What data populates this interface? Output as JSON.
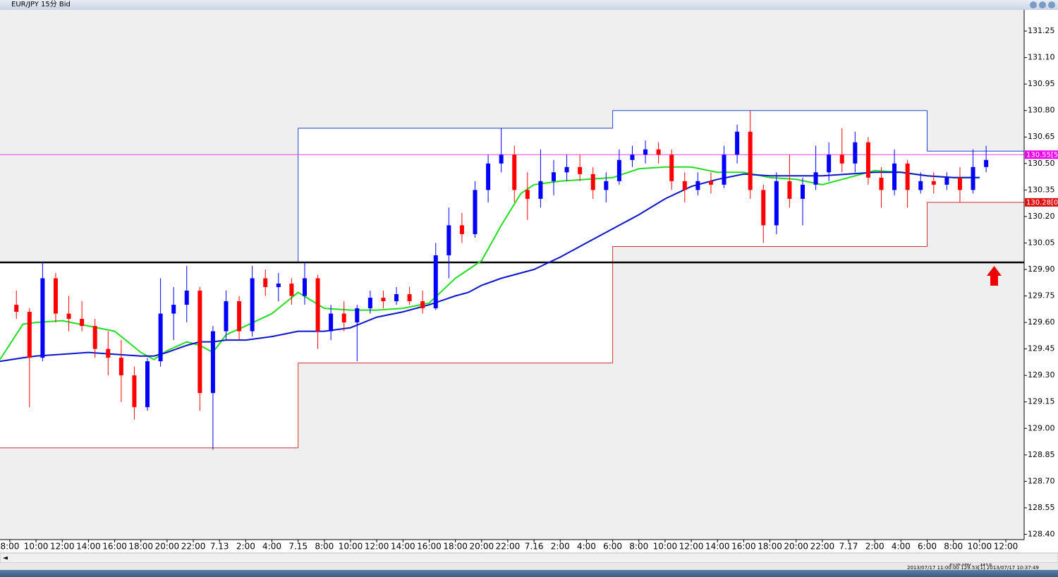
{
  "window": {
    "title": "EUR/JPY 15分 Bid"
  },
  "chart_data": {
    "type": "candlestick",
    "xlim": [
      -3,
      309.6
    ],
    "ylim": [
      128.37,
      131.37
    ],
    "xticks": [
      {
        "value": 0,
        "label": "8:00"
      },
      {
        "value": 8,
        "label": "10:00"
      },
      {
        "value": 16,
        "label": "12:00"
      },
      {
        "value": 24,
        "label": "14:00"
      },
      {
        "value": 32,
        "label": "16:00"
      },
      {
        "value": 40,
        "label": "18:00"
      },
      {
        "value": 48,
        "label": "20:00"
      },
      {
        "value": 56,
        "label": "22:00"
      },
      {
        "value": 64,
        "label": "7.13"
      },
      {
        "value": 72,
        "label": "2:00"
      },
      {
        "value": 80,
        "label": "4:00"
      },
      {
        "value": 88,
        "label": "7.15"
      },
      {
        "value": 96,
        "label": "8:00"
      },
      {
        "value": 104,
        "label": "10:00"
      },
      {
        "value": 112,
        "label": "12:00"
      },
      {
        "value": 120,
        "label": "14:00"
      },
      {
        "value": 128,
        "label": "16:00"
      },
      {
        "value": 136,
        "label": "18:00"
      },
      {
        "value": 144,
        "label": "20:00"
      },
      {
        "value": 152,
        "label": "22:00"
      },
      {
        "value": 160,
        "label": "7.16"
      },
      {
        "value": 168,
        "label": "2:00"
      },
      {
        "value": 176,
        "label": "4:00"
      },
      {
        "value": 184,
        "label": "6:00"
      },
      {
        "value": 192,
        "label": "8:00"
      },
      {
        "value": 200,
        "label": "10:00"
      },
      {
        "value": 208,
        "label": "12:00"
      },
      {
        "value": 216,
        "label": "14:00"
      },
      {
        "value": 224,
        "label": "16:00"
      },
      {
        "value": 232,
        "label": "18:00"
      },
      {
        "value": 240,
        "label": "20:00"
      },
      {
        "value": 248,
        "label": "22:00"
      },
      {
        "value": 256,
        "label": "7.17"
      },
      {
        "value": 264,
        "label": "2:00"
      },
      {
        "value": 272,
        "label": "4:00"
      },
      {
        "value": 280,
        "label": "6:00"
      },
      {
        "value": 288,
        "label": "8:00"
      },
      {
        "value": 296,
        "label": "10:00"
      },
      {
        "value": 304,
        "label": "12:00"
      }
    ],
    "yticks": [
      {
        "value": 131.25,
        "label": "131.25"
      },
      {
        "value": 131.1,
        "label": "131.10"
      },
      {
        "value": 130.95,
        "label": "130.95"
      },
      {
        "value": 130.8,
        "label": "130.80"
      },
      {
        "value": 130.65,
        "label": "130.65"
      },
      {
        "value": 130.5,
        "label": "130.50"
      },
      {
        "value": 130.35,
        "label": "130.35"
      },
      {
        "value": 130.2,
        "label": "130.20"
      },
      {
        "value": 130.05,
        "label": "130.05"
      },
      {
        "value": 129.9,
        "label": "129.90"
      },
      {
        "value": 129.75,
        "label": "129.75"
      },
      {
        "value": 129.6,
        "label": "129.60"
      },
      {
        "value": 129.45,
        "label": "129.45"
      },
      {
        "value": 129.3,
        "label": "129.30"
      },
      {
        "value": 129.15,
        "label": "129.15"
      },
      {
        "value": 129.0,
        "label": "129.00"
      },
      {
        "value": 128.85,
        "label": "128.85"
      },
      {
        "value": 128.7,
        "label": "128.70"
      },
      {
        "value": 128.55,
        "label": "128.55"
      },
      {
        "value": 128.4,
        "label": "128.40"
      }
    ],
    "up_color": "#0000ff",
    "down_color": "#ff0000",
    "x": [
      2,
      6,
      10,
      14,
      18,
      22,
      26,
      30,
      34,
      38,
      42,
      46,
      50,
      54,
      58,
      62,
      66,
      70,
      74,
      78,
      82,
      86,
      90,
      94,
      98,
      102,
      106,
      110,
      114,
      118,
      122,
      126,
      130,
      134,
      138,
      142,
      146,
      150,
      154,
      158,
      162,
      166,
      170,
      174,
      178,
      182,
      186,
      190,
      194,
      198,
      202,
      206,
      210,
      214,
      218,
      222,
      226,
      230,
      234,
      238,
      242,
      246,
      250,
      254,
      258,
      262,
      266,
      270,
      274,
      278,
      282,
      286,
      290,
      294,
      298
    ],
    "candles": [
      [
        129.7,
        129.78,
        129.62,
        129.66
      ],
      [
        129.66,
        129.68,
        129.12,
        129.4
      ],
      [
        129.4,
        129.94,
        129.38,
        129.85
      ],
      [
        129.85,
        129.88,
        129.6,
        129.65
      ],
      [
        129.65,
        129.75,
        129.55,
        129.62
      ],
      [
        129.62,
        129.72,
        129.55,
        129.58
      ],
      [
        129.58,
        129.62,
        129.4,
        129.45
      ],
      [
        129.45,
        129.55,
        129.3,
        129.4
      ],
      [
        129.4,
        129.5,
        129.15,
        129.3
      ],
      [
        129.3,
        129.35,
        129.05,
        129.12
      ],
      [
        129.12,
        129.4,
        129.1,
        129.38
      ],
      [
        129.38,
        129.85,
        129.35,
        129.65
      ],
      [
        129.65,
        129.8,
        129.5,
        129.7
      ],
      [
        129.7,
        129.92,
        129.6,
        129.78
      ],
      [
        129.78,
        129.8,
        129.1,
        129.2
      ],
      [
        129.2,
        129.58,
        128.88,
        129.55
      ],
      [
        129.55,
        129.78,
        129.5,
        129.72
      ],
      [
        129.72,
        129.75,
        129.5,
        129.55
      ],
      [
        129.55,
        129.92,
        129.52,
        129.85
      ],
      [
        129.85,
        129.9,
        129.75,
        129.8
      ],
      [
        129.8,
        129.88,
        129.72,
        129.82
      ],
      [
        129.82,
        129.85,
        129.7,
        129.75
      ],
      [
        129.75,
        129.94,
        129.7,
        129.85
      ],
      [
        129.85,
        129.87,
        129.45,
        129.55
      ],
      [
        129.55,
        129.7,
        129.5,
        129.65
      ],
      [
        129.65,
        129.72,
        129.55,
        129.6
      ],
      [
        129.6,
        129.7,
        129.38,
        129.68
      ],
      [
        129.68,
        129.78,
        129.65,
        129.74
      ],
      [
        129.74,
        129.78,
        129.68,
        129.72
      ],
      [
        129.72,
        129.8,
        129.7,
        129.76
      ],
      [
        129.76,
        129.8,
        129.7,
        129.72
      ],
      [
        129.72,
        129.78,
        129.65,
        129.68
      ],
      [
        129.68,
        130.05,
        129.67,
        129.98
      ],
      [
        129.98,
        130.25,
        129.85,
        130.15
      ],
      [
        130.15,
        130.22,
        130.05,
        130.1
      ],
      [
        130.1,
        130.4,
        130.08,
        130.35
      ],
      [
        130.35,
        130.55,
        130.28,
        130.5
      ],
      [
        130.5,
        130.7,
        130.45,
        130.55
      ],
      [
        130.55,
        130.6,
        130.28,
        130.35
      ],
      [
        130.35,
        130.45,
        130.18,
        130.3
      ],
      [
        130.3,
        130.58,
        130.25,
        130.4
      ],
      [
        130.4,
        130.52,
        130.32,
        130.45
      ],
      [
        130.45,
        130.55,
        130.4,
        130.48
      ],
      [
        130.48,
        130.55,
        130.4,
        130.44
      ],
      [
        130.44,
        130.48,
        130.3,
        130.35
      ],
      [
        130.35,
        130.45,
        130.28,
        130.4
      ],
      [
        130.4,
        130.58,
        130.38,
        130.52
      ],
      [
        130.52,
        130.6,
        130.48,
        130.55
      ],
      [
        130.55,
        130.63,
        130.5,
        130.58
      ],
      [
        130.58,
        130.62,
        130.5,
        130.55
      ],
      [
        130.55,
        130.58,
        130.35,
        130.4
      ],
      [
        130.4,
        130.45,
        130.28,
        130.35
      ],
      [
        130.35,
        130.45,
        130.32,
        130.4
      ],
      [
        130.4,
        130.45,
        130.33,
        130.38
      ],
      [
        130.38,
        130.6,
        130.36,
        130.55
      ],
      [
        130.55,
        130.72,
        130.5,
        130.68
      ],
      [
        130.68,
        130.8,
        130.3,
        130.35
      ],
      [
        130.35,
        130.38,
        130.05,
        130.15
      ],
      [
        130.15,
        130.45,
        130.1,
        130.4
      ],
      [
        130.4,
        130.55,
        130.25,
        130.3
      ],
      [
        130.3,
        130.42,
        130.15,
        130.38
      ],
      [
        130.38,
        130.6,
        130.35,
        130.45
      ],
      [
        130.45,
        130.62,
        130.4,
        130.55
      ],
      [
        130.55,
        130.7,
        130.45,
        130.5
      ],
      [
        130.5,
        130.68,
        130.45,
        130.62
      ],
      [
        130.62,
        130.65,
        130.38,
        130.42
      ],
      [
        130.42,
        130.48,
        130.25,
        130.35
      ],
      [
        130.35,
        130.58,
        130.32,
        130.5
      ],
      [
        130.5,
        130.52,
        130.25,
        130.35
      ],
      [
        130.35,
        130.45,
        130.33,
        130.4
      ],
      [
        130.4,
        130.45,
        130.33,
        130.38
      ],
      [
        130.38,
        130.45,
        130.35,
        130.42
      ],
      [
        130.42,
        130.48,
        130.28,
        130.35
      ],
      [
        130.35,
        130.58,
        130.33,
        130.48
      ],
      [
        130.48,
        130.6,
        130.45,
        130.52
      ]
    ],
    "series": [
      {
        "color": "#22dd22",
        "x": [
          -3,
          4,
          8,
          16,
          24,
          32,
          40,
          44,
          48,
          54,
          58,
          62,
          66,
          72,
          80,
          88,
          96,
          104,
          112,
          120,
          128,
          136,
          140,
          144,
          150,
          156,
          160,
          168,
          176,
          184,
          192,
          200,
          208,
          216,
          224,
          232,
          240,
          248,
          256,
          264,
          272,
          280,
          288,
          296
        ],
        "values": [
          129.39,
          129.59,
          129.6,
          129.61,
          129.58,
          129.55,
          129.43,
          129.39,
          129.44,
          129.49,
          129.47,
          129.43,
          129.53,
          129.58,
          129.65,
          129.77,
          129.68,
          129.67,
          129.67,
          129.68,
          129.71,
          129.85,
          129.9,
          129.95,
          130.15,
          130.33,
          130.38,
          130.4,
          130.41,
          130.42,
          130.47,
          130.48,
          130.48,
          130.45,
          130.45,
          130.42,
          130.41,
          130.38,
          130.42,
          130.46,
          130.45,
          130.43,
          130.42,
          130.42
        ]
      },
      {
        "color": "#0a14c8",
        "x": [
          -3,
          4,
          8,
          16,
          24,
          32,
          40,
          44,
          48,
          54,
          58,
          62,
          66,
          72,
          80,
          88,
          96,
          104,
          112,
          120,
          128,
          136,
          140,
          144,
          150,
          156,
          160,
          168,
          176,
          184,
          192,
          200,
          208,
          216,
          224,
          232,
          240,
          248,
          256,
          264,
          272,
          280,
          288,
          296
        ],
        "values": [
          129.38,
          129.4,
          129.41,
          129.42,
          129.43,
          129.42,
          129.41,
          129.41,
          129.43,
          129.47,
          129.49,
          129.49,
          129.5,
          129.5,
          129.52,
          129.55,
          129.55,
          129.57,
          129.63,
          129.66,
          129.7,
          129.75,
          129.77,
          129.81,
          129.85,
          129.88,
          129.9,
          129.97,
          130.05,
          130.13,
          130.21,
          130.3,
          130.37,
          130.41,
          130.44,
          130.43,
          130.43,
          130.43,
          130.44,
          130.45,
          130.45,
          130.43,
          130.42,
          130.42
        ]
      }
    ],
    "ranges": [
      {
        "x": [
          -3,
          88
        ],
        "high": 129.94,
        "low": 128.89
      },
      {
        "x": [
          88,
          184
        ],
        "high": 130.7,
        "low": 129.37
      },
      {
        "x": [
          184,
          280
        ],
        "high": 130.8,
        "low": 130.03
      },
      {
        "x": [
          280,
          309.6
        ],
        "high": 130.57,
        "low": 130.28
      }
    ],
    "range_high_color": "#2244cc",
    "range_low_color": "#cc3333",
    "hlines": [
      {
        "value": 129.94,
        "color": "#000000"
      },
      {
        "value": 130.55,
        "color": "#ee44ee"
      }
    ],
    "price_tags": [
      {
        "value": 130.55,
        "label": "130.55[5",
        "color": "#ee00ee"
      },
      {
        "value": 130.28,
        "label": "130.28[0",
        "color": "#dd1111"
      }
    ]
  },
  "status": {
    "symbol": "EUR/JPY",
    "timeframe": "M15",
    "bar_time": "2013/07/17 11:00:00",
    "bar_price": "129.53[1]",
    "server_time": "2013/07/17 10:37:49"
  }
}
